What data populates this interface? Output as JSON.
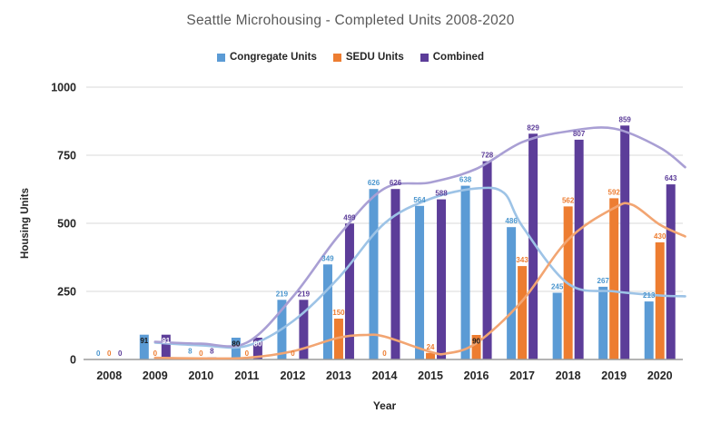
{
  "title": "Seattle Microhousing - Completed Units 2008-2020",
  "axes": {
    "y_title": "Housing Units",
    "x_title": "Year",
    "y_ticks": [
      0,
      250,
      500,
      750,
      1000
    ]
  },
  "legend": {
    "items": [
      {
        "key": "congregate",
        "label": "Congregate Units",
        "color": "#5B9BD5"
      },
      {
        "key": "sedu",
        "label": "SEDU Units",
        "color": "#ED7D31"
      },
      {
        "key": "combined",
        "label": "Combined",
        "color": "#5C3D99"
      }
    ]
  },
  "chart_data": {
    "type": "bar",
    "title": "Seattle Microhousing - Completed Units 2008-2020",
    "xlabel": "Year",
    "ylabel": "Housing Units",
    "ylim": [
      0,
      1000
    ],
    "grid": true,
    "legend_position": "top",
    "categories": [
      "2008",
      "2009",
      "2010",
      "2011",
      "2012",
      "2013",
      "2014",
      "2015",
      "2016",
      "2017",
      "2018",
      "2019",
      "2020"
    ],
    "series": [
      {
        "key": "congregate",
        "name": "Congregate Units",
        "color": "#5B9BD5",
        "label_color": "#4B96CE",
        "values": [
          0,
          91,
          8,
          80,
          219,
          349,
          626,
          564,
          638,
          486,
          245,
          267,
          213
        ]
      },
      {
        "key": "sedu",
        "name": "SEDU Units",
        "color": "#ED7D31",
        "label_color": "#ED7D31",
        "values": [
          0,
          0,
          0,
          0,
          0,
          150,
          0,
          24,
          90,
          343,
          562,
          592,
          430
        ]
      },
      {
        "key": "combined",
        "name": "Combined",
        "color": "#5C3D99",
        "label_color": "#5C3D99",
        "values": [
          0,
          91,
          8,
          80,
          219,
          499,
          626,
          588,
          728,
          829,
          807,
          859,
          643
        ]
      }
    ],
    "inside_labels": [
      {
        "year": "2009",
        "series": "Congregate Units",
        "text_color": "#1a1a1a"
      },
      {
        "year": "2009",
        "series": "Combined",
        "text_color": "#ffffff"
      },
      {
        "year": "2011",
        "series": "Congregate Units",
        "text_color": "#1a1a1a"
      },
      {
        "year": "2011",
        "series": "Combined",
        "text_color": "#ffffff"
      },
      {
        "year": "2016",
        "series": "SEDU Units",
        "text_color": "#1a1a1a"
      }
    ],
    "trendlines": [
      {
        "key": "congregate",
        "series": "Congregate Units",
        "color": "#9DC3E6",
        "points": [
          [
            2009,
            62
          ],
          [
            2010,
            52
          ],
          [
            2011,
            50
          ],
          [
            2012,
            140
          ],
          [
            2013,
            300
          ],
          [
            2014,
            500
          ],
          [
            2015,
            590
          ],
          [
            2016,
            628
          ],
          [
            2016.6,
            612
          ],
          [
            2017,
            490
          ],
          [
            2018,
            278
          ],
          [
            2019,
            250
          ],
          [
            2020,
            235
          ],
          [
            2020.55,
            232
          ]
        ]
      },
      {
        "key": "sedu",
        "series": "SEDU Units",
        "color": "#F2A572",
        "points": [
          [
            2009,
            6
          ],
          [
            2010,
            4
          ],
          [
            2011,
            6
          ],
          [
            2012,
            30
          ],
          [
            2013,
            80
          ],
          [
            2013.6,
            90
          ],
          [
            2014,
            84
          ],
          [
            2015,
            28
          ],
          [
            2015.35,
            22
          ],
          [
            2016,
            60
          ],
          [
            2017,
            215
          ],
          [
            2018,
            440
          ],
          [
            2019,
            556
          ],
          [
            2019.4,
            568
          ],
          [
            2020,
            495
          ],
          [
            2020.55,
            452
          ]
        ]
      },
      {
        "key": "combined",
        "series": "Combined",
        "color": "#A99FD4",
        "points": [
          [
            2009,
            65
          ],
          [
            2010,
            58
          ],
          [
            2011,
            62
          ],
          [
            2012,
            230
          ],
          [
            2013,
            455
          ],
          [
            2014,
            628
          ],
          [
            2015,
            650
          ],
          [
            2016,
            700
          ],
          [
            2017,
            798
          ],
          [
            2018,
            838
          ],
          [
            2019,
            848
          ],
          [
            2020,
            778
          ],
          [
            2020.55,
            706
          ]
        ]
      }
    ],
    "style": {
      "grid_color": "#D9D9D9",
      "axis_color": "#9B9B9B",
      "text_color": "#262626",
      "title_color": "#595959",
      "background": "#FFFFFF"
    }
  }
}
